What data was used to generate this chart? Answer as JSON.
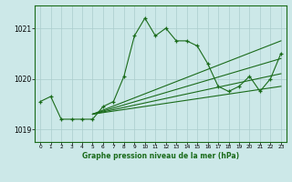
{
  "title": "Graphe pression niveau de la mer (hPa)",
  "bg_color": "#cce8e8",
  "grid_color": "#aacccc",
  "line_color": "#1a6b1a",
  "xlim": [
    -0.5,
    23.5
  ],
  "ylim": [
    1018.75,
    1021.45
  ],
  "yticks": [
    1019,
    1020,
    1021
  ],
  "xticks": [
    0,
    1,
    2,
    3,
    4,
    5,
    6,
    7,
    8,
    9,
    10,
    11,
    12,
    13,
    14,
    15,
    16,
    17,
    18,
    19,
    20,
    21,
    22,
    23
  ],
  "main_x": [
    0,
    1,
    2,
    3,
    4,
    5,
    6,
    7,
    8,
    9,
    10,
    11,
    12,
    13,
    14,
    15,
    16,
    17,
    18,
    19,
    20,
    21,
    22,
    23
  ],
  "main_y": [
    1019.55,
    1019.65,
    1019.2,
    1019.2,
    1019.2,
    1019.2,
    1019.45,
    1019.55,
    1020.05,
    1020.85,
    1021.2,
    1020.85,
    1021.0,
    1020.75,
    1020.75,
    1020.65,
    1020.3,
    1019.85,
    1019.75,
    1019.85,
    1020.05,
    1019.75,
    1020.0,
    1020.5
  ],
  "fan_lines": [
    [
      [
        5,
        23
      ],
      [
        1019.3,
        1019.85
      ]
    ],
    [
      [
        5,
        23
      ],
      [
        1019.3,
        1020.1
      ]
    ],
    [
      [
        5,
        23
      ],
      [
        1019.3,
        1020.4
      ]
    ],
    [
      [
        5,
        23
      ],
      [
        1019.3,
        1020.75
      ]
    ]
  ],
  "fan_marker_data": [
    [
      1019.3,
      1019.3,
      1019.4,
      1019.5,
      1019.85,
      1019.85,
      1019.8,
      1019.85,
      1019.85,
      1019.85
    ],
    [
      1019.3,
      1019.3,
      1019.4,
      1019.5,
      1020.0,
      1020.05,
      1019.95,
      1020.0,
      1020.1,
      1020.1
    ],
    [
      1019.3,
      1019.3,
      1019.4,
      1019.5,
      1020.15,
      1020.2,
      1020.1,
      1020.15,
      1020.35,
      1020.4
    ],
    [
      1019.3,
      1019.3,
      1019.4,
      1019.5,
      1020.3,
      1020.4,
      1020.25,
      1020.3,
      1020.7,
      1020.75
    ]
  ]
}
